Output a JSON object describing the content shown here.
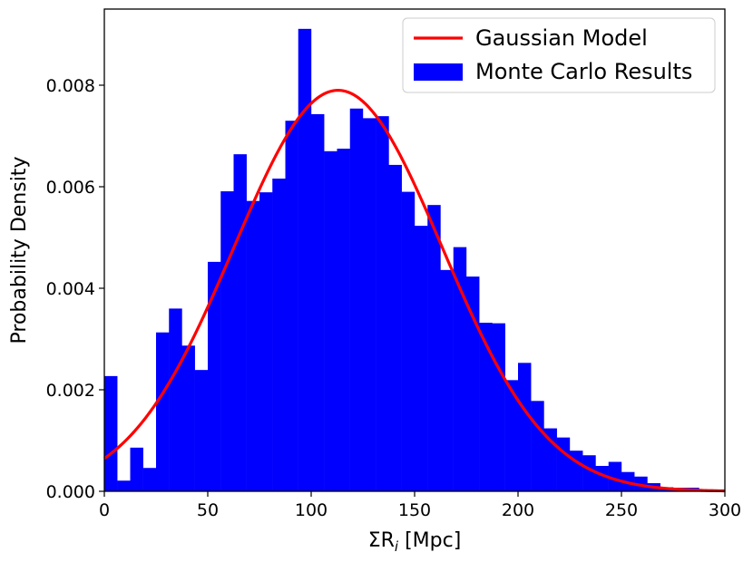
{
  "chart_data": {
    "type": "bar",
    "xlabel": "ΣR",
    "xlabel_sub": "i",
    "xlabel_unit": " [Mpc]",
    "ylabel": "Probability Density",
    "xlim": [
      0,
      300
    ],
    "ylim": [
      0,
      0.0095
    ],
    "xticks": [
      0,
      50,
      100,
      150,
      200,
      250,
      300
    ],
    "xtick_labels": [
      "0",
      "50",
      "100",
      "150",
      "200",
      "250",
      "300"
    ],
    "yticks": [
      0,
      0.002,
      0.004,
      0.006,
      0.008
    ],
    "ytick_labels": [
      "0.000",
      "0.002",
      "0.004",
      "0.006",
      "0.008"
    ],
    "grid": false,
    "legend_position": "top-right",
    "histogram": {
      "name": "Monte Carlo Results",
      "color": "#0000ff",
      "bin_width": 6.25,
      "bin_start": 0,
      "values": [
        0.00227,
        0.00021,
        0.00086,
        0.00046,
        0.00313,
        0.0036,
        0.00287,
        0.00239,
        0.00452,
        0.00591,
        0.00664,
        0.00572,
        0.00589,
        0.00616,
        0.0073,
        0.00911,
        0.00743,
        0.0067,
        0.00675,
        0.00754,
        0.00735,
        0.00739,
        0.00643,
        0.0059,
        0.00523,
        0.00564,
        0.00436,
        0.00481,
        0.00423,
        0.00332,
        0.00331,
        0.00219,
        0.00253,
        0.00178,
        0.00124,
        0.00106,
        0.0008,
        0.00071,
        0.0005,
        0.00058,
        0.00038,
        0.00029,
        0.00016,
        8e-05,
        7e-05,
        7e-05,
        3e-05,
        2e-05
      ]
    },
    "gaussian": {
      "name": "Gaussian Model",
      "color": "#ff0000",
      "mean": 113,
      "std": 50.5
    }
  }
}
